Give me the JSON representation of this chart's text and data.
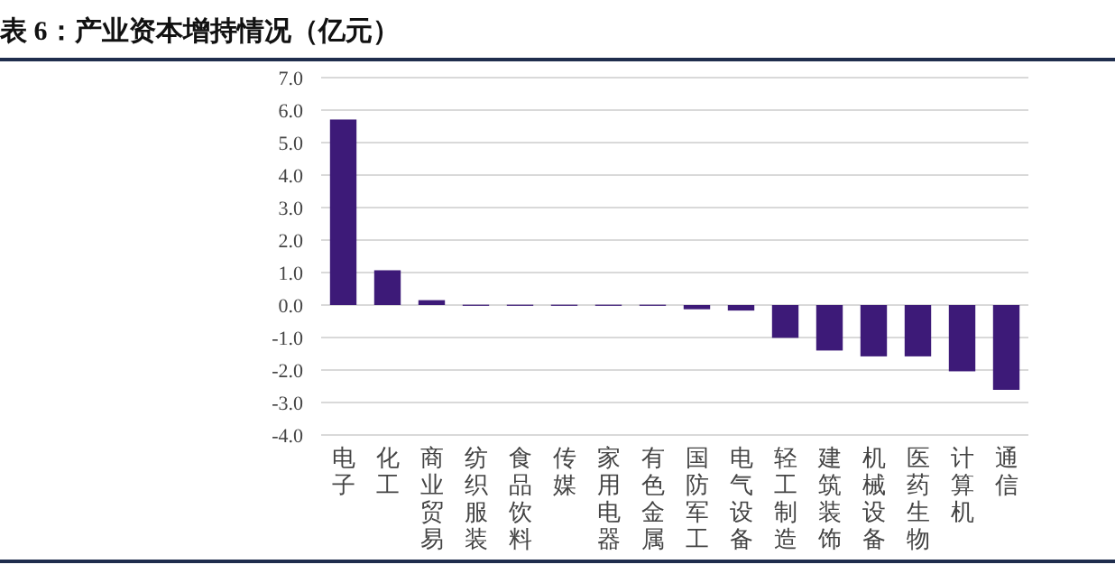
{
  "chart_data": {
    "type": "bar",
    "title": "表 6：产业资本增持情况（亿元）",
    "categories": [
      "电子",
      "化工",
      "商业贸易",
      "纺织服装",
      "食品饮料",
      "传媒",
      "家用电器",
      "有色金属",
      "国防军工",
      "电气设备",
      "轻工制造",
      "建筑装饰",
      "机械设备",
      "医药生物",
      "计算机",
      "通信"
    ],
    "values": [
      5.71,
      1.07,
      0.15,
      0.01,
      0.01,
      0.01,
      0.01,
      0.01,
      -0.13,
      -0.17,
      -1.01,
      -1.4,
      -1.58,
      -1.58,
      -2.04,
      -2.61
    ],
    "color": "#3d1a78",
    "ylim": [
      -4,
      7
    ],
    "yticks": [
      {
        "value": -4,
        "label": "-4.0"
      },
      {
        "value": -3,
        "label": "-3.0"
      },
      {
        "value": -2,
        "label": "-2.0"
      },
      {
        "value": -1,
        "label": "-1.0"
      },
      {
        "value": 0,
        "label": "0.0"
      },
      {
        "value": 1,
        "label": "1.0"
      },
      {
        "value": 2,
        "label": "2.0"
      },
      {
        "value": 3,
        "label": "3.0"
      },
      {
        "value": 4,
        "label": "4.0"
      },
      {
        "value": 5,
        "label": "5.0"
      },
      {
        "value": 6,
        "label": "6.0"
      },
      {
        "value": 7,
        "label": "7.0"
      }
    ],
    "grid": "y"
  }
}
